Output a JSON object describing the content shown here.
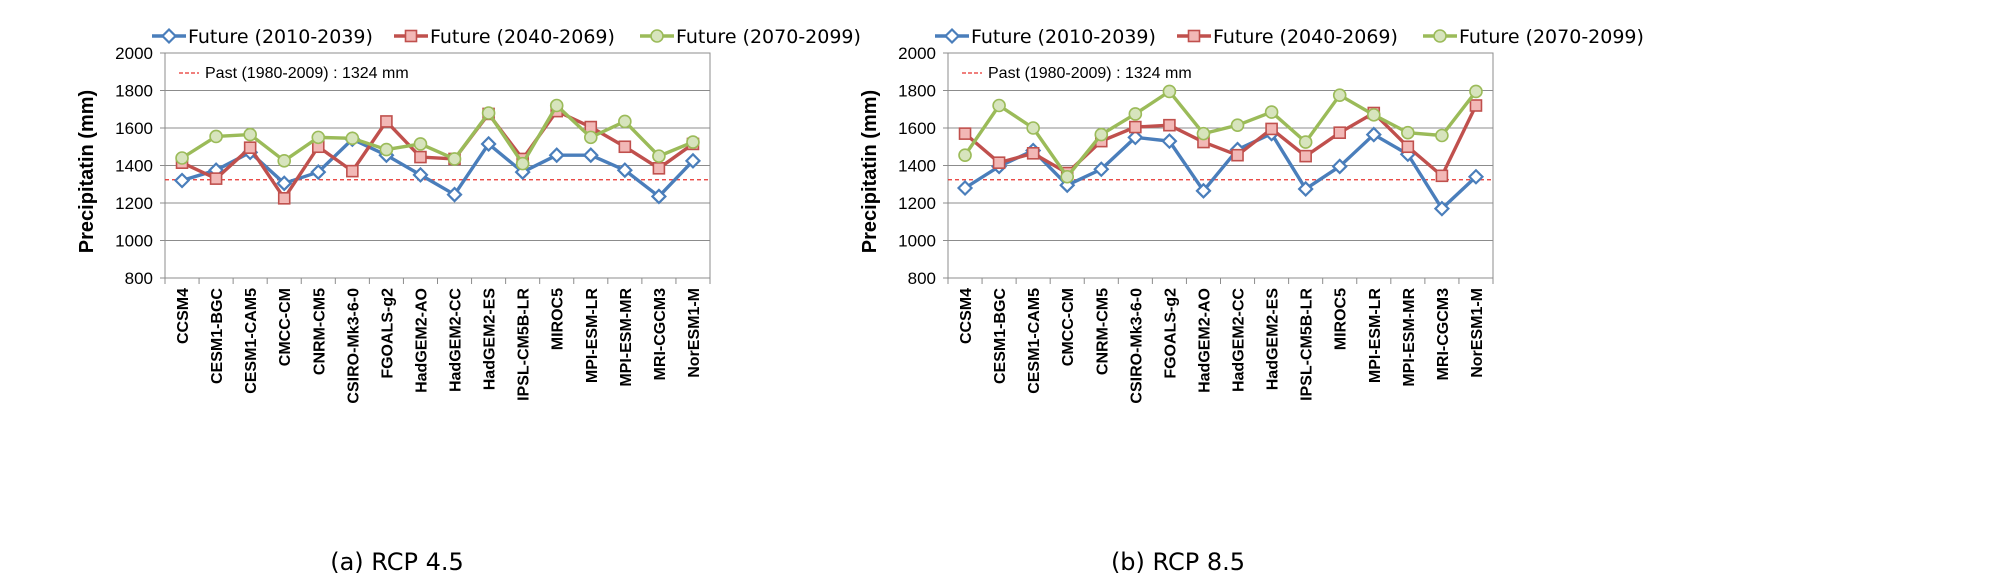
{
  "chart_data": [
    {
      "type": "line",
      "caption": "(a) RCP 4.5",
      "ylabel": "Precipitatin (mm)",
      "ylim": [
        800,
        2000
      ],
      "yticks": [
        800,
        1000,
        1200,
        1400,
        1600,
        1800,
        2000
      ],
      "grid": "horizontal",
      "legend_position": "top",
      "categories": [
        "CCSM4",
        "CESM1-BGC",
        "CESM1-CAM5",
        "CMCC-CM",
        "CNRM-CM5",
        "CSIRO-Mk3-6-0",
        "FGOALS-g2",
        "HadGEM2-AO",
        "HadGEM2-CC",
        "HadGEM2-ES",
        "IPSL-CM5B-LR",
        "MIROC5",
        "MPI-ESM-LR",
        "MPI-ESM-MR",
        "MRI-CGCM3",
        "NorESM1-M"
      ],
      "reference": {
        "label": "Past (1980-2009)  : 1324  mm",
        "value": 1324,
        "color": "#e8332f"
      },
      "series": [
        {
          "name": "Future (2010-2039)",
          "color": "#4a7ebb",
          "marker": "diamond",
          "values": [
            1320,
            1375,
            1470,
            1305,
            1365,
            1540,
            1455,
            1350,
            1245,
            1515,
            1365,
            1455,
            1455,
            1375,
            1235,
            1425
          ]
        },
        {
          "name": "Future (2040-2069)",
          "color": "#c0504d",
          "marker": "square",
          "values": [
            1415,
            1330,
            1495,
            1225,
            1500,
            1370,
            1635,
            1445,
            1435,
            1675,
            1435,
            1690,
            1605,
            1500,
            1385,
            1515
          ]
        },
        {
          "name": "Future (2070-2099)",
          "color": "#9bbb59",
          "marker": "circle",
          "values": [
            1440,
            1555,
            1565,
            1425,
            1550,
            1545,
            1485,
            1515,
            1435,
            1680,
            1410,
            1720,
            1550,
            1635,
            1450,
            1525
          ]
        }
      ]
    },
    {
      "type": "line",
      "caption": "(b) RCP 8.5",
      "ylabel": "Precipitatin (mm)",
      "ylim": [
        800,
        2000
      ],
      "yticks": [
        800,
        1000,
        1200,
        1400,
        1600,
        1800,
        2000
      ],
      "grid": "horizontal",
      "legend_position": "top",
      "categories": [
        "CCSM4",
        "CESM1-BGC",
        "CESM1-CAM5",
        "CMCC-CM",
        "CNRM-CM5",
        "CSIRO-Mk3-6-0",
        "FGOALS-g2",
        "HadGEM2-AO",
        "HadGEM2-CC",
        "HadGEM2-ES",
        "IPSL-CM5B-LR",
        "MIROC5",
        "MPI-ESM-LR",
        "MPI-ESM-MR",
        "MRI-CGCM3",
        "NorESM1-M"
      ],
      "reference": {
        "label": "Past (1980-2009)  : 1324  mm",
        "value": 1324,
        "color": "#e8332f"
      },
      "series": [
        {
          "name": "Future (2010-2039)",
          "color": "#4a7ebb",
          "marker": "diamond",
          "values": [
            1280,
            1395,
            1480,
            1295,
            1380,
            1550,
            1530,
            1265,
            1485,
            1570,
            1275,
            1395,
            1565,
            1460,
            1170,
            1340
          ]
        },
        {
          "name": "Future (2040-2069)",
          "color": "#c0504d",
          "marker": "square",
          "values": [
            1570,
            1415,
            1465,
            1360,
            1530,
            1605,
            1615,
            1525,
            1455,
            1595,
            1450,
            1575,
            1680,
            1500,
            1345,
            1720
          ]
        },
        {
          "name": "Future (2070-2099)",
          "color": "#9bbb59",
          "marker": "circle",
          "values": [
            1455,
            1720,
            1600,
            1340,
            1565,
            1675,
            1795,
            1570,
            1615,
            1685,
            1525,
            1775,
            1670,
            1575,
            1560,
            1795
          ]
        }
      ]
    }
  ]
}
